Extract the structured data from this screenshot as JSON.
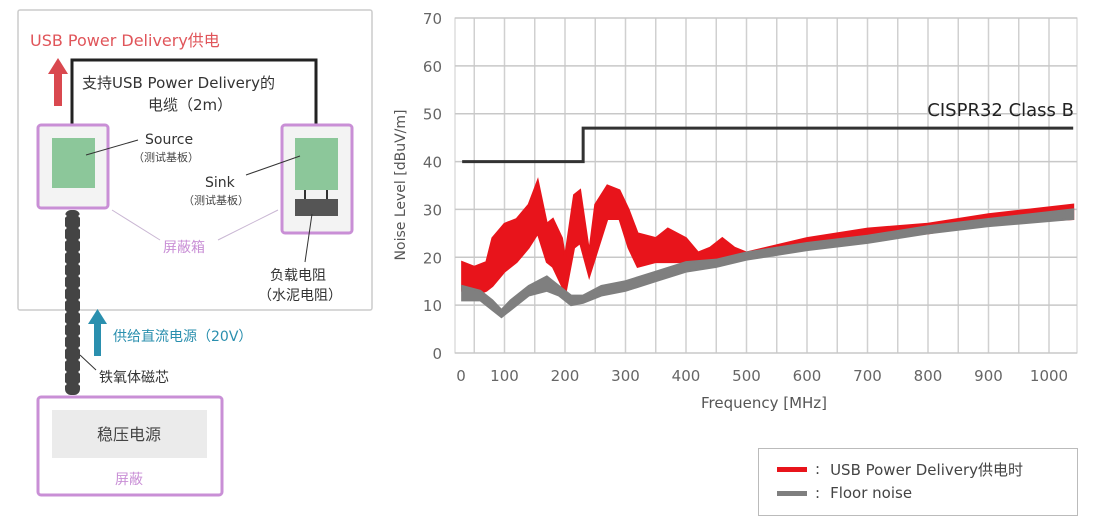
{
  "diagram": {
    "title": "USB Power Delivery供电",
    "cable_label_line1": "支持USB Power Delivery的",
    "cable_label_line2": "电缆（2m）",
    "source_label": "Source",
    "source_sub": "（测试基板）",
    "sink_label": "Sink",
    "sink_sub": "（测试基板）",
    "shield_box_label": "屏蔽箱",
    "load_label": "负载电阻",
    "load_sub": "（水泥电阻）",
    "dc_supply_label": "供给直流电源（20V）",
    "ferrite_label": "铁氧体磁芯",
    "power_supply_label": "稳压电源",
    "power_shield_label": "屏蔽",
    "colors": {
      "red_text": "#e0555a",
      "purple": "#c98fd6",
      "green": "#8cc79a",
      "teal": "#2a8fae",
      "red_arrow": "#d9484f"
    }
  },
  "chart_data": {
    "type": "line",
    "xlabel": "Frequency [MHz]",
    "ylabel": "Noise Level [dBuV/m]",
    "xlim": [
      18,
      1045
    ],
    "ylim": [
      0,
      70
    ],
    "xticks": [
      0,
      100,
      200,
      300,
      400,
      500,
      600,
      700,
      800,
      900,
      1000
    ],
    "yticks": [
      0,
      10,
      20,
      30,
      40,
      50,
      60,
      70
    ],
    "grid": true,
    "limit_line": {
      "name": "CISPR32 Class B",
      "color": "#333333",
      "points": [
        [
          30,
          40
        ],
        [
          230,
          40
        ],
        [
          230,
          47
        ],
        [
          1040,
          47
        ]
      ]
    },
    "series": [
      {
        "name": "USB Power Delivery供电时",
        "color": "#e8141b",
        "x": [
          30,
          50,
          70,
          80,
          100,
          120,
          140,
          155,
          170,
          180,
          195,
          200,
          215,
          225,
          240,
          250,
          270,
          290,
          305,
          320,
          350,
          370,
          400,
          420,
          440,
          460,
          480,
          500,
          600,
          700,
          800,
          900,
          1040
        ],
        "upper": [
          19,
          18,
          19,
          24,
          27,
          28,
          31,
          36,
          27,
          28,
          24,
          20,
          33,
          34,
          21,
          31,
          35,
          34,
          30,
          25,
          24,
          26,
          24,
          21,
          22,
          24,
          22,
          21,
          24,
          26,
          27,
          29,
          31
        ],
        "lower": [
          13,
          12,
          13,
          14,
          17,
          19,
          22,
          25,
          19,
          18,
          14,
          12,
          22,
          23,
          16,
          20,
          28,
          28,
          22,
          18,
          19,
          19,
          19,
          18,
          19,
          19,
          19,
          20,
          22,
          24,
          25,
          27,
          28
        ]
      },
      {
        "name": "Floor noise",
        "color": "#7f7f7f",
        "x": [
          30,
          60,
          80,
          95,
          110,
          140,
          170,
          190,
          210,
          230,
          260,
          300,
          350,
          400,
          450,
          500,
          600,
          700,
          800,
          900,
          1040
        ],
        "upper": [
          14,
          13,
          11,
          9,
          11,
          14,
          16,
          14,
          12,
          12,
          14,
          15,
          17,
          19,
          19.5,
          21,
          23,
          24.5,
          26.5,
          28,
          30
        ],
        "lower": [
          11,
          11,
          9,
          7.5,
          9,
          12,
          13,
          12,
          10,
          10.5,
          12,
          13,
          15,
          17,
          18,
          19.5,
          21.5,
          23,
          25,
          26.5,
          28
        ]
      }
    ]
  }
}
